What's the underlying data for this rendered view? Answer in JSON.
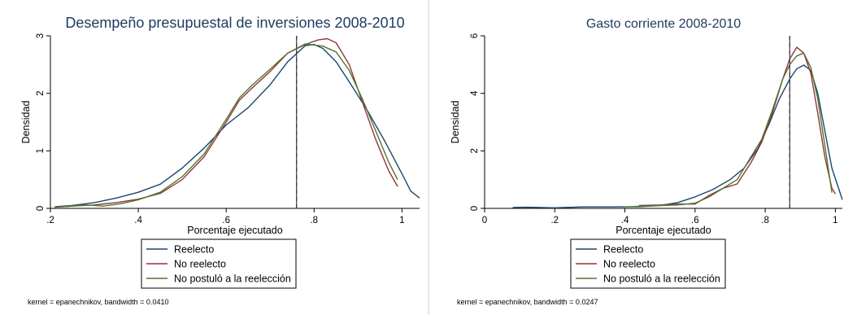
{
  "chart_data": [
    {
      "type": "line",
      "title": "Desempeño presupuestal de inversiones 2008-2010",
      "xlabel": "Porcentaje ejecutado",
      "ylabel": "Densidad",
      "xlim": [
        0.2,
        1.04
      ],
      "ylim": [
        0,
        3
      ],
      "xticks": [
        0.2,
        0.4,
        0.6,
        0.8,
        1.0
      ],
      "xtick_labels": [
        ".2",
        ".4",
        ".6",
        ".8",
        "1"
      ],
      "yticks": [
        0,
        1,
        2,
        3
      ],
      "ytick_labels": [
        "0",
        "1",
        "2",
        "3"
      ],
      "vline": 0.76,
      "legend_position": "bottom",
      "note": "kernel = epanechnikov, bandwidth = 0.0410",
      "series": [
        {
          "name": "Reelecto",
          "color": "#1a476f",
          "x": [
            0.21,
            0.25,
            0.3,
            0.35,
            0.4,
            0.45,
            0.5,
            0.55,
            0.6,
            0.65,
            0.7,
            0.74,
            0.78,
            0.8,
            0.82,
            0.85,
            0.88,
            0.92,
            0.96,
            1.0,
            1.02,
            1.04
          ],
          "y": [
            0.03,
            0.05,
            0.1,
            0.18,
            0.28,
            0.42,
            0.7,
            1.05,
            1.45,
            1.75,
            2.15,
            2.55,
            2.83,
            2.85,
            2.78,
            2.55,
            2.2,
            1.72,
            1.18,
            0.6,
            0.3,
            0.18
          ]
        },
        {
          "name": "No reelecto",
          "color": "#90353b",
          "x": [
            0.21,
            0.25,
            0.3,
            0.35,
            0.4,
            0.45,
            0.5,
            0.55,
            0.6,
            0.63,
            0.66,
            0.7,
            0.74,
            0.78,
            0.81,
            0.83,
            0.85,
            0.88,
            0.91,
            0.94,
            0.97,
            0.99
          ],
          "y": [
            0.02,
            0.04,
            0.06,
            0.1,
            0.16,
            0.26,
            0.5,
            0.9,
            1.5,
            1.88,
            2.1,
            2.38,
            2.7,
            2.85,
            2.93,
            2.95,
            2.88,
            2.5,
            1.85,
            1.2,
            0.65,
            0.38
          ]
        },
        {
          "name": "No postuló a la reelección",
          "color": "#55752f",
          "x": [
            0.21,
            0.25,
            0.28,
            0.32,
            0.36,
            0.4,
            0.45,
            0.5,
            0.55,
            0.6,
            0.63,
            0.66,
            0.7,
            0.74,
            0.78,
            0.82,
            0.85,
            0.88,
            0.91,
            0.94,
            0.97,
            0.99
          ],
          "y": [
            0.02,
            0.04,
            0.06,
            0.04,
            0.08,
            0.15,
            0.28,
            0.55,
            0.95,
            1.55,
            1.92,
            2.15,
            2.42,
            2.7,
            2.86,
            2.82,
            2.72,
            2.4,
            1.9,
            1.35,
            0.8,
            0.5
          ]
        }
      ]
    },
    {
      "type": "line",
      "title": "Gasto corriente 2008-2010",
      "xlabel": "Porcentaje ejecutado",
      "ylabel": "Densidad",
      "xlim": [
        0,
        1.02
      ],
      "ylim": [
        0,
        6
      ],
      "xticks": [
        0,
        0.2,
        0.4,
        0.6,
        0.8,
        1.0
      ],
      "xtick_labels": [
        "0",
        ".2",
        ".4",
        ".6",
        ".8",
        "1"
      ],
      "yticks": [
        0,
        2,
        4,
        6
      ],
      "ytick_labels": [
        "0",
        "2",
        "4",
        "6"
      ],
      "vline": 0.87,
      "legend_position": "bottom",
      "note": "kernel = epanechnikov, bandwidth = 0.0247",
      "series": [
        {
          "name": "Reelecto",
          "color": "#1a476f",
          "x": [
            0.08,
            0.12,
            0.2,
            0.28,
            0.36,
            0.44,
            0.5,
            0.55,
            0.6,
            0.65,
            0.7,
            0.74,
            0.78,
            0.81,
            0.84,
            0.87,
            0.89,
            0.91,
            0.93,
            0.95,
            0.97,
            0.99,
            1.02
          ],
          "y": [
            0.03,
            0.04,
            0.02,
            0.05,
            0.05,
            0.06,
            0.1,
            0.2,
            0.4,
            0.65,
            1.0,
            1.4,
            2.1,
            2.9,
            3.8,
            4.5,
            4.85,
            4.98,
            4.8,
            4.0,
            2.7,
            1.4,
            0.3
          ]
        },
        {
          "name": "No reelecto",
          "color": "#90353b",
          "x": [
            0.44,
            0.5,
            0.55,
            0.6,
            0.64,
            0.68,
            0.72,
            0.76,
            0.79,
            0.82,
            0.85,
            0.87,
            0.89,
            0.91,
            0.93,
            0.95,
            0.97,
            0.99,
            1.0
          ],
          "y": [
            0.1,
            0.12,
            0.15,
            0.15,
            0.45,
            0.7,
            0.85,
            1.6,
            2.3,
            3.3,
            4.5,
            5.2,
            5.6,
            5.4,
            4.7,
            3.3,
            1.8,
            0.7,
            0.5
          ]
        },
        {
          "name": "No postuló a la reelección",
          "color": "#55752f",
          "x": [
            0.4,
            0.45,
            0.5,
            0.55,
            0.6,
            0.64,
            0.68,
            0.72,
            0.76,
            0.79,
            0.82,
            0.85,
            0.87,
            0.89,
            0.91,
            0.93,
            0.95,
            0.97,
            0.99
          ],
          "y": [
            0.05,
            0.08,
            0.1,
            0.12,
            0.18,
            0.4,
            0.7,
            1.0,
            1.8,
            2.4,
            3.4,
            4.5,
            5.0,
            5.3,
            5.4,
            4.9,
            3.8,
            2.2,
            0.55
          ]
        }
      ]
    }
  ]
}
